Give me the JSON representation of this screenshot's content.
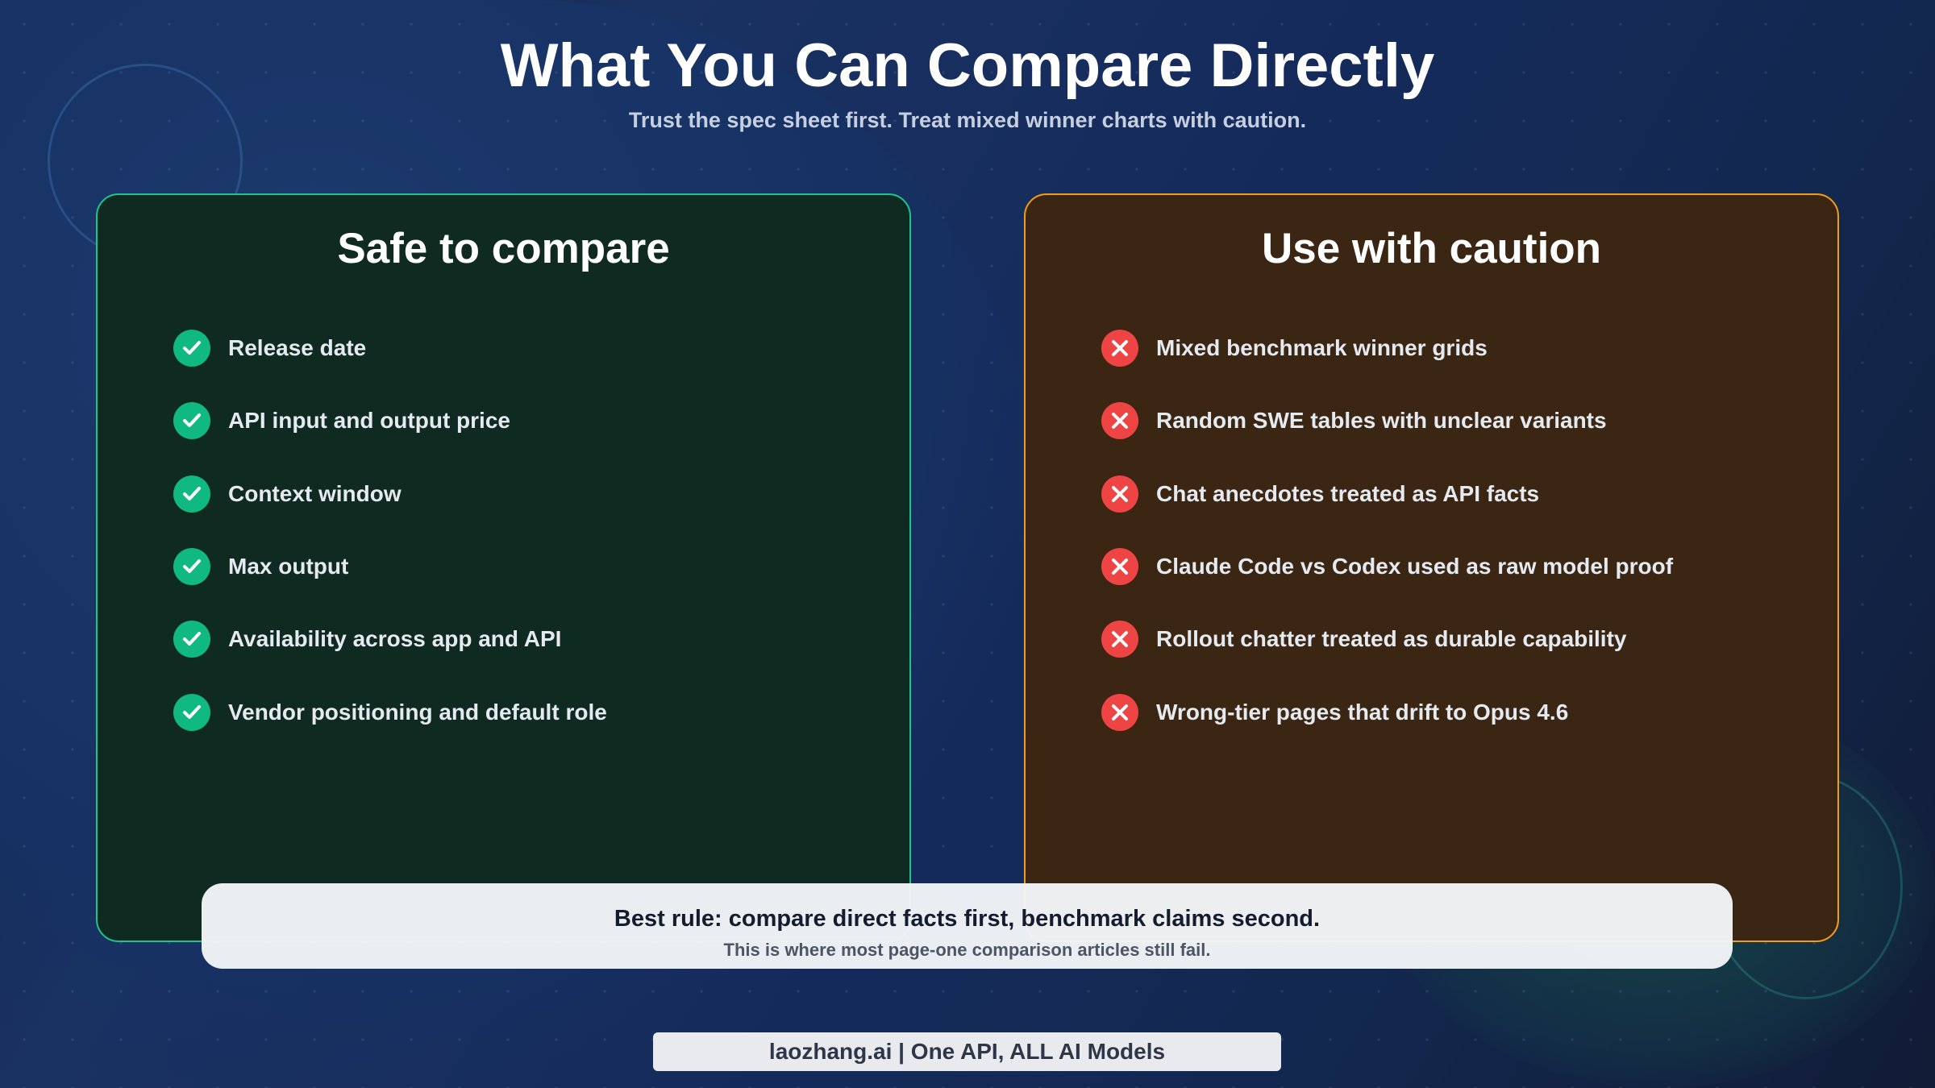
{
  "header": {
    "title": "What You Can Compare Directly",
    "subtitle": "Trust the spec sheet first. Treat mixed winner charts with caution."
  },
  "safe": {
    "title": "Safe to compare",
    "icon": "check-circle-icon",
    "color": "#10b981",
    "items": [
      "Release date",
      "API input and output price",
      "Context window",
      "Max output",
      "Availability across app and API",
      "Vendor positioning and default role"
    ]
  },
  "caution": {
    "title": "Use with caution",
    "icon": "x-circle-icon",
    "color": "#ef4444",
    "items": [
      "Mixed benchmark winner grids",
      "Random SWE tables with unclear variants",
      "Chat anecdotes treated as API facts",
      "Claude Code vs Codex used as raw model proof",
      "Rollout chatter treated as durable capability",
      "Wrong-tier pages that drift to Opus 4.6"
    ]
  },
  "rule": {
    "headline": "Best rule: compare direct facts first, benchmark claims second.",
    "note": "This is where most page-one comparison articles still fail."
  },
  "footer": {
    "text": "laozhang.ai | One API, ALL AI Models"
  }
}
